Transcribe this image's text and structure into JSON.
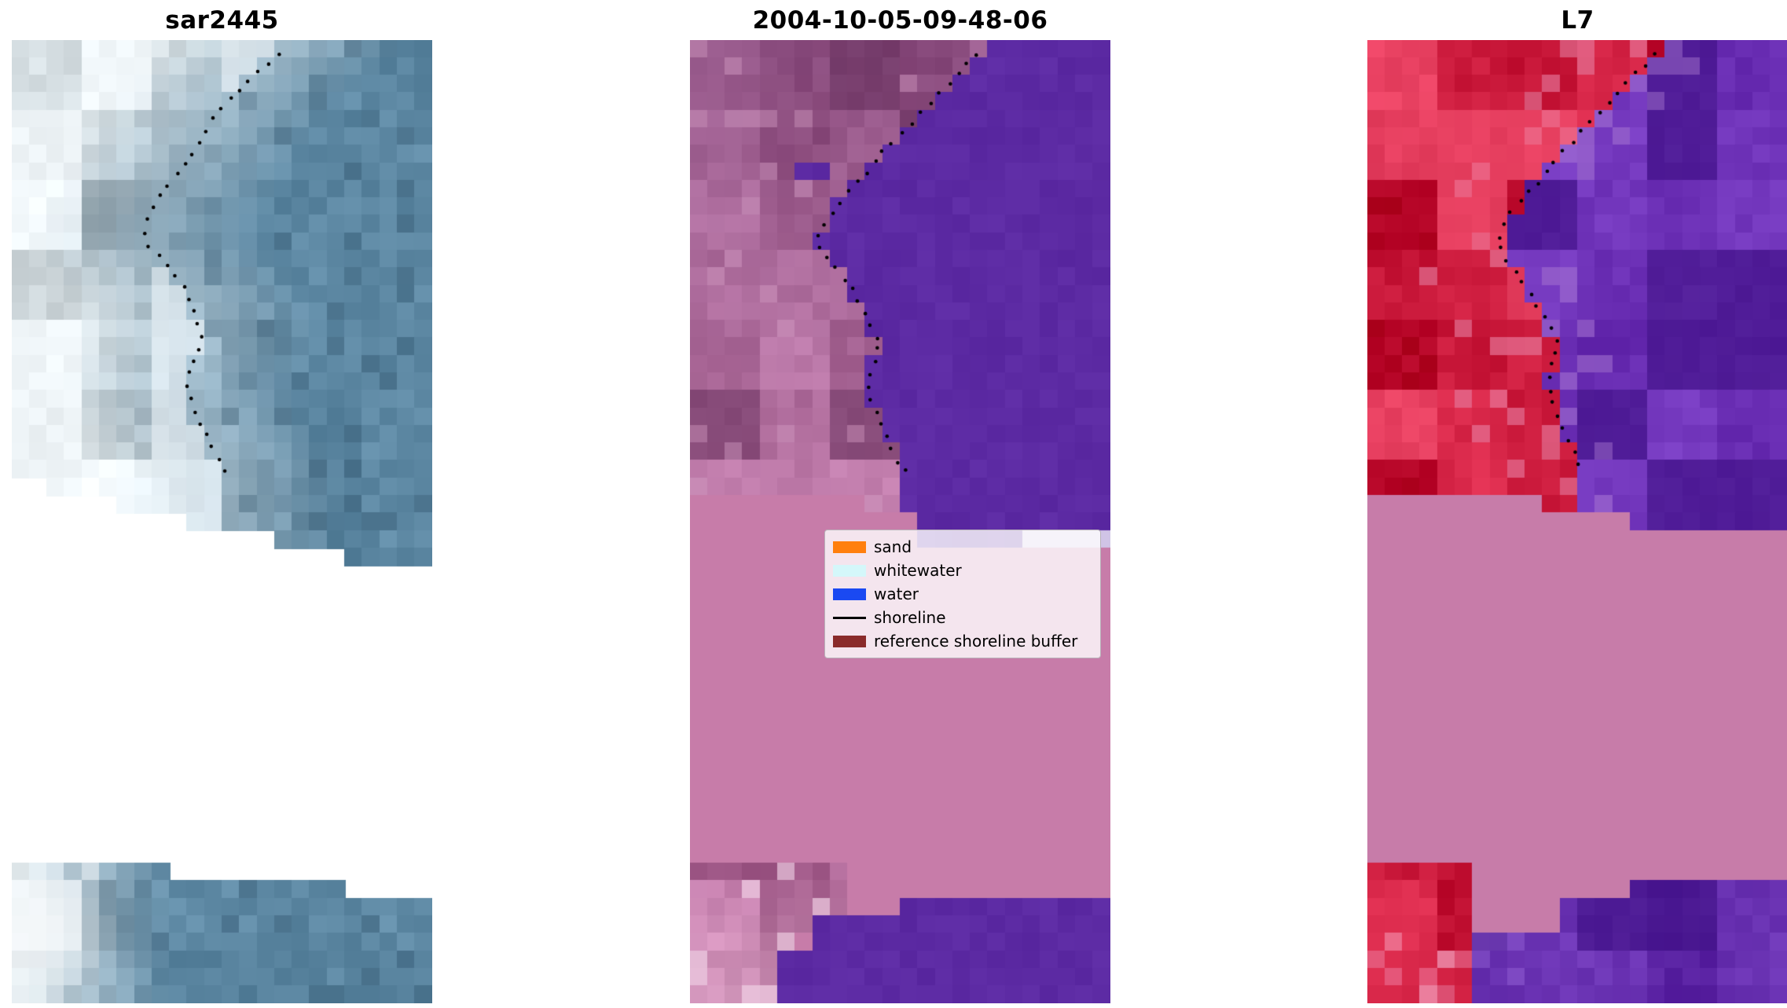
{
  "figure": {
    "background": "#ffffff"
  },
  "panels": [
    {
      "id": "sar2445",
      "title": "sar2445",
      "palette": {
        "cloud_light": "#dce5e9",
        "sea_blue": "#5a85a0",
        "bright_white": "#f5f8fa",
        "shadow_blue": "#3e6078",
        "dot": "#000000"
      }
    },
    {
      "id": "classified",
      "title": "2004-10-05-09-48-06",
      "palette": {
        "land_mauve": "#8c4e80",
        "land_pink": "#b4709f",
        "water_purple": "#5c2aa3",
        "buffer_rose": "#c77ca9",
        "lavender": "#d0c4e6",
        "dot": "#000000"
      }
    },
    {
      "id": "l7",
      "title": "L7",
      "palette": {
        "land_red": "#cd1c3e",
        "land_pink": "#e187aa",
        "water_purple": "#6a2eb4",
        "water_dark": "#46198c",
        "buffer_rose": "#c77ca9",
        "dot": "#000000"
      }
    }
  ],
  "legend": {
    "items": [
      {
        "label": "sand",
        "type": "patch",
        "color": "#ff7f0e"
      },
      {
        "label": "whitewater",
        "type": "patch",
        "color": "#d4f7fa"
      },
      {
        "label": "water",
        "type": "patch",
        "color": "#1a49f2"
      },
      {
        "label": "shoreline",
        "type": "line",
        "color": "#000000"
      },
      {
        "label": "reference shoreline buffer",
        "type": "patch",
        "color": "#8a2b2b"
      }
    ]
  },
  "chart_data": {
    "type": "image",
    "panels": [
      {
        "title": "sar2445",
        "content": "blue-gray SAR satellite image, bright cloud-like patches on left, dotted black detected shoreline curve, stepped no-data bottom edge, white gap, and a second image strip at the bottom with a bright white patch at its left"
      },
      {
        "title": "2004-10-05-09-48-06",
        "content": "classified scene: mauve/pink land on left, flat dark-purple water right of dotted shoreline, flat rose reference-shoreline-buffer band across the middle, pink land blob bottom-left and purple water patch at bottom"
      },
      {
        "title": "L7",
        "content": "false-colour scene: red land on left, noisy purple water right of dotted shoreline, flat rose reference-shoreline-buffer band across the middle, red blob bottom-left and noisy purple water patch at bottom"
      }
    ],
    "legend_entries": [
      "sand",
      "whitewater",
      "water",
      "shoreline",
      "reference shoreline buffer"
    ]
  }
}
